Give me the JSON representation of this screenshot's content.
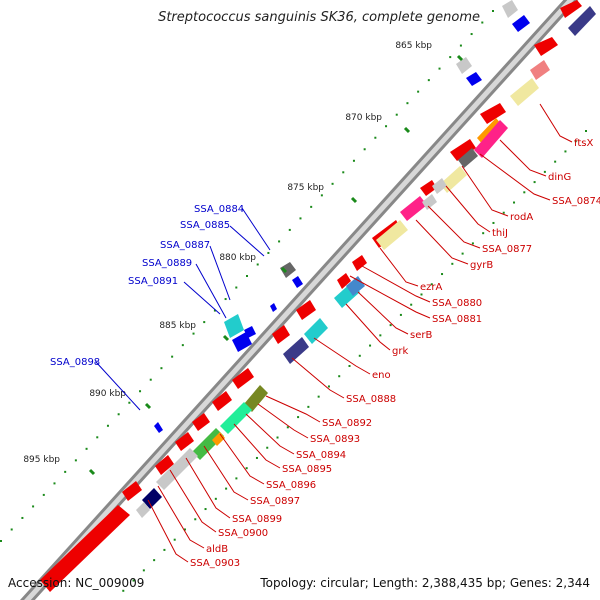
{
  "title": "Streptococcus sanguinis SK36, complete genome",
  "footer": {
    "accession_label": "Accession:",
    "accession": "NC_009009",
    "topology_label": "Topology:",
    "topology": "circular",
    "length_label": "Length:",
    "length": "2,388,435 bp",
    "genes_label": "Genes:",
    "genes": "2,344"
  },
  "colors": {
    "backbone": "#9a9a9a",
    "forward_cds": "#ee0000",
    "tick": "#1a8a1a",
    "label_blue": "#0000cc",
    "label_red": "#cc0000"
  },
  "ticks": [
    {
      "label": "865 kbp"
    },
    {
      "label": "870 kbp"
    },
    {
      "label": "875 kbp"
    },
    {
      "label": "880 kbp"
    },
    {
      "label": "885 kbp"
    },
    {
      "label": "890 kbp"
    },
    {
      "label": "895 kbp"
    }
  ],
  "labels_left": [
    "SSA_0884",
    "SSA_0885",
    "SSA_0887",
    "SSA_0889",
    "SSA_0891",
    "SSA_0898"
  ],
  "labels_right": [
    "ftsX",
    "dinG",
    "SSA_0874",
    "rodA",
    "thiJ",
    "SSA_0877",
    "gyrB",
    "ezrA",
    "SSA_0880",
    "SSA_0881",
    "serB",
    "grk",
    "eno",
    "SSA_0888",
    "SSA_0892",
    "SSA_0893",
    "SSA_0894",
    "SSA_0895",
    "SSA_0896",
    "SSA_0897",
    "SSA_0899",
    "SSA_0900",
    "aldB",
    "SSA_0903"
  ]
}
